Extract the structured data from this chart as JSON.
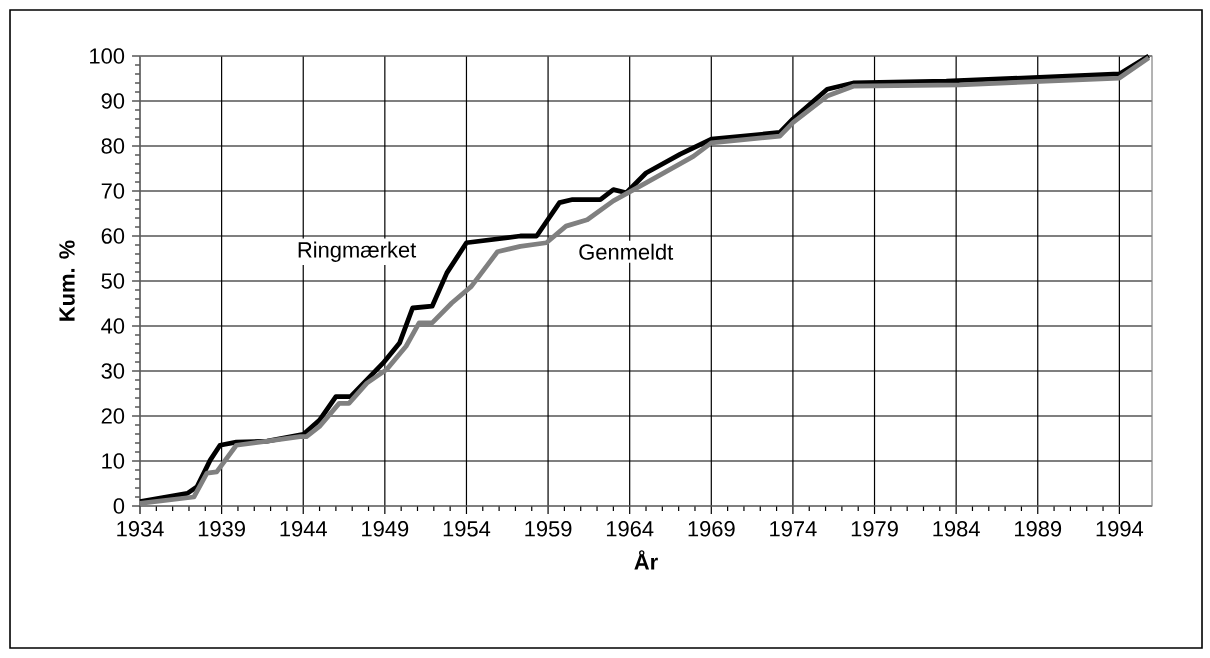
{
  "chart_data": {
    "type": "line",
    "xlabel": "År",
    "ylabel": "Kum. %",
    "xlim": [
      1934,
      1996
    ],
    "xticks": [
      1934,
      1939,
      1944,
      1949,
      1954,
      1959,
      1964,
      1969,
      1974,
      1979,
      1984,
      1989,
      1994
    ],
    "ylim": [
      0,
      100
    ],
    "yticks": [
      0,
      10,
      20,
      30,
      40,
      50,
      60,
      70,
      80,
      90,
      100
    ],
    "grid": true,
    "legend": false,
    "marker": "none",
    "line_style": "solid",
    "series": [
      {
        "name": "Ringmærket",
        "color": "#000000",
        "x": [
          1934,
          1936.9,
          1937.5,
          1938.3,
          1938.9,
          1939.9,
          1941.8,
          1944.0,
          1945.0,
          1946.0,
          1946.9,
          1948.9,
          1949.9,
          1950.7,
          1951.9,
          1952.8,
          1954.0,
          1957.3,
          1958.3,
          1959.7,
          1960.5,
          1962.2,
          1963.0,
          1963.8,
          1965.0,
          1967.1,
          1969,
          1973.2,
          1974,
          1976.1,
          1977.7,
          1983.4,
          1994,
          1995.8
        ],
        "values": [
          1,
          2.8,
          4.3,
          10.2,
          13.5,
          14.2,
          14.4,
          15.9,
          19.1,
          24.3,
          24.3,
          31.8,
          36.2,
          44,
          44.4,
          51.8,
          58.5,
          60,
          60,
          67.4,
          68.1,
          68.1,
          70.3,
          69.6,
          74,
          78.2,
          81.5,
          83,
          86,
          92.6,
          94,
          94.4,
          96,
          100
        ]
      },
      {
        "name": "Genmeldt",
        "color": "#808080",
        "x": [
          1934,
          1937.3,
          1938.1,
          1938.7,
          1939.9,
          1941.8,
          1943.8,
          1944.2,
          1945,
          1946.2,
          1946.8,
          1947.9,
          1949.1,
          1950.3,
          1951.1,
          1951.9,
          1953.1,
          1954.3,
          1955.9,
          1957.3,
          1958.9,
          1960.1,
          1961.4,
          1963.0,
          1965.0,
          1967.9,
          1969,
          1973.2,
          1974,
          1976.1,
          1977.7,
          1984.2,
          1994,
          1995.8
        ],
        "values": [
          0.6,
          2,
          7.3,
          7.6,
          13.5,
          14.4,
          15.4,
          15.4,
          17.7,
          22.8,
          22.8,
          27.3,
          30.3,
          35.5,
          40.7,
          40.7,
          45.1,
          48.8,
          56.5,
          57.7,
          58.5,
          62.2,
          63.6,
          67.8,
          71.8,
          77.7,
          80.7,
          82.2,
          85.2,
          91.1,
          93.3,
          93.6,
          95.1,
          99.6
        ]
      }
    ]
  }
}
